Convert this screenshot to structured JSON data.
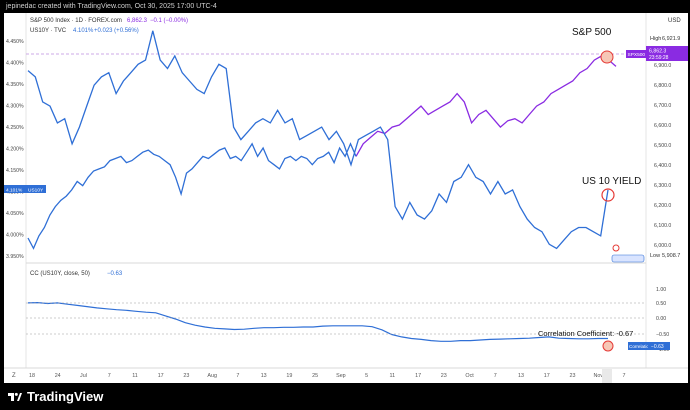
{
  "header_caption": "jepinedac created with TradingView.com, Oct 30, 2025 17:00 UTC-4",
  "legend": {
    "spx_name": "S&P 500 Index · 1D · FOREX.com",
    "spx_value": "6,862.3",
    "spx_change": "−0.1 (−0.00%)",
    "us10y_name": "US10Y · TVC",
    "us10y_value": "4.101%",
    "us10y_change": "+0.023 (+0.56%)",
    "cc_name": "CC (US10Y, close, 50)",
    "cc_value": "−0.63"
  },
  "annotations": {
    "spx": "S&P 500",
    "yield": "US 10 YIELD",
    "corr": "Correlation Coefficient: -0.67"
  },
  "left_axis_labels": [
    "4.450%",
    "4.400%",
    "4.350%",
    "4.300%",
    "4.250%",
    "4.200%",
    "4.150%",
    "4.100%",
    "4.050%",
    "4.000%",
    "3.950%"
  ],
  "left_badge": {
    "value": "4.101%",
    "name": "US10Y"
  },
  "right_axis_labels": [
    "6,900.0",
    "6,800.0",
    "6,700.0",
    "6,600.0",
    "6,500.0",
    "6,400.0",
    "6,300.0",
    "6,200.0",
    "6,100.0",
    "6,000.0"
  ],
  "right_axis_unit": "USD",
  "right_high": {
    "label": "High",
    "value": "6,921.9"
  },
  "right_low": {
    "label": "Low",
    "value": "5,908.7"
  },
  "right_badge": {
    "name": "SPX500",
    "value": "6,862.3",
    "timer": "23:59:28"
  },
  "cc_axis_labels": [
    "1.00",
    "0.50",
    "0.00",
    "−0.50",
    "−1.00"
  ],
  "cc_badge": {
    "name": "Correlation",
    "value": "−0.63"
  },
  "x_axis_labels": [
    "18",
    "24",
    "Jul",
    "7",
    "11",
    "17",
    "23",
    "Aug",
    "7",
    "13",
    "19",
    "25",
    "Sep",
    "5",
    "11",
    "17",
    "23",
    "Oct",
    "7",
    "13",
    "17",
    "23",
    "Nov",
    "7"
  ],
  "bottom_left_label": "Z",
  "brand": "TradingView",
  "colors": {
    "spx_line": "#8a2be2",
    "us10y_line": "#2f6fd6",
    "cc_line": "#2f6fd6",
    "accent_red": "#e53935",
    "marker_fill": "#f6c7b6"
  },
  "chart_data": [
    {
      "type": "line",
      "series": [
        {
          "name": "US10Y · TVC",
          "axis": "left",
          "unit": "%",
          "values": [
            3.985,
            3.96,
            3.99,
            4.01,
            4.04,
            4.06,
            4.075,
            4.085,
            4.1,
            4.12,
            4.11,
            4.13,
            4.145,
            4.15,
            4.155,
            4.17,
            4.175,
            4.18,
            4.165,
            4.17,
            4.18,
            4.19,
            4.195,
            4.185,
            4.18,
            4.17,
            4.16,
            4.13,
            4.09,
            4.14,
            4.15,
            4.165,
            4.18,
            4.175,
            4.185,
            4.195,
            4.2,
            4.175,
            4.18,
            4.17,
            4.19,
            4.21,
            4.18,
            4.2,
            4.17,
            4.16,
            4.15,
            4.175,
            4.18,
            4.17,
            4.18,
            4.175,
            4.16,
            4.175,
            4.18,
            4.19,
            4.165,
            4.2,
            4.18,
            4.21,
            4.18,
            4.21,
            4.225,
            4.24,
            4.235,
            4.25,
            4.255,
            4.27,
            4.285,
            4.3,
            4.28,
            4.29,
            4.3,
            4.31,
            4.33,
            4.31,
            4.26,
            4.28,
            4.29,
            4.27,
            4.25,
            4.265,
            4.27,
            4.26,
            4.28,
            4.3,
            4.31,
            4.33,
            4.34,
            4.35,
            4.36,
            4.38,
            4.39,
            4.41,
            4.42,
            4.41,
            4.395
          ],
          "ylim": [
            3.93,
            4.47
          ]
        },
        {
          "name": "US10Y · TVC",
          "axis": "left",
          "unit": "%",
          "values": [
            4.385,
            4.37,
            4.31,
            4.3,
            4.26,
            4.27,
            4.21,
            4.25,
            4.3,
            4.35,
            4.37,
            4.38,
            4.33,
            4.36,
            4.38,
            4.4,
            4.41,
            4.48,
            4.41,
            4.39,
            4.42,
            4.38,
            4.36,
            4.34,
            4.33,
            4.37,
            4.4,
            4.39,
            4.25,
            4.22,
            4.24,
            4.26,
            4.27,
            4.26,
            4.29,
            4.26,
            4.27,
            4.22,
            4.23,
            4.24,
            4.25,
            4.22,
            4.24,
            4.21,
            4.16,
            4.22,
            4.23,
            4.24,
            4.25,
            4.22,
            4.06,
            4.03,
            4.07,
            4.04,
            4.03,
            4.05,
            4.09,
            4.07,
            4.12,
            4.13,
            4.16,
            4.13,
            4.12,
            4.09,
            4.12,
            4.09,
            4.1,
            4.06,
            4.03,
            4.01,
            4.0,
            3.97,
            3.96,
            3.98,
            4.0,
            4.01,
            4.01,
            4.0,
            3.99,
            4.1
          ],
          "ylim": [
            3.93,
            4.47
          ]
        }
      ],
      "ylim": [
        3.93,
        4.47
      ]
    },
    {
      "type": "line",
      "series": [
        {
          "name": "CC (US10Y, close, 50)",
          "values": [
            0.52,
            0.53,
            0.5,
            0.52,
            0.48,
            0.44,
            0.4,
            0.36,
            0.33,
            0.3,
            0.28,
            0.25,
            0.22,
            0.2,
            0.1,
            0.0,
            -0.12,
            -0.2,
            -0.26,
            -0.3,
            -0.32,
            -0.34,
            -0.33,
            -0.3,
            -0.28,
            -0.28,
            -0.27,
            -0.27,
            -0.26,
            -0.26,
            -0.23,
            -0.22,
            -0.22,
            -0.22,
            -0.22,
            -0.25,
            -0.35,
            -0.5,
            -0.58,
            -0.63,
            -0.66,
            -0.7,
            -0.72,
            -0.72,
            -0.7,
            -0.7,
            -0.68,
            -0.66,
            -0.65,
            -0.64,
            -0.63,
            -0.62,
            -0.6,
            -0.58,
            -0.62,
            -0.63,
            -0.64,
            -0.64,
            -0.63,
            -0.63
          ],
          "ylim": [
            -1.1,
            1.1
          ]
        }
      ],
      "ylim": [
        -1.1,
        1.1
      ]
    }
  ]
}
